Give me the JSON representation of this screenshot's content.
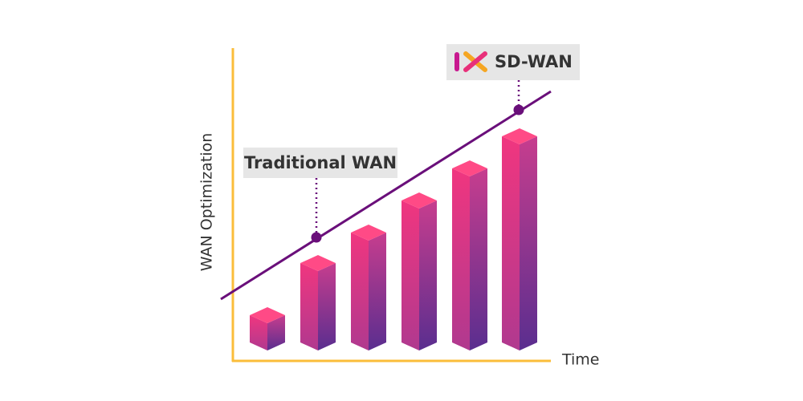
{
  "axes": {
    "y_label": "WAN Optimization",
    "x_label": "Time"
  },
  "labels": {
    "traditional": "Traditional WAN",
    "sdwan": "SD-WAN"
  }
}
